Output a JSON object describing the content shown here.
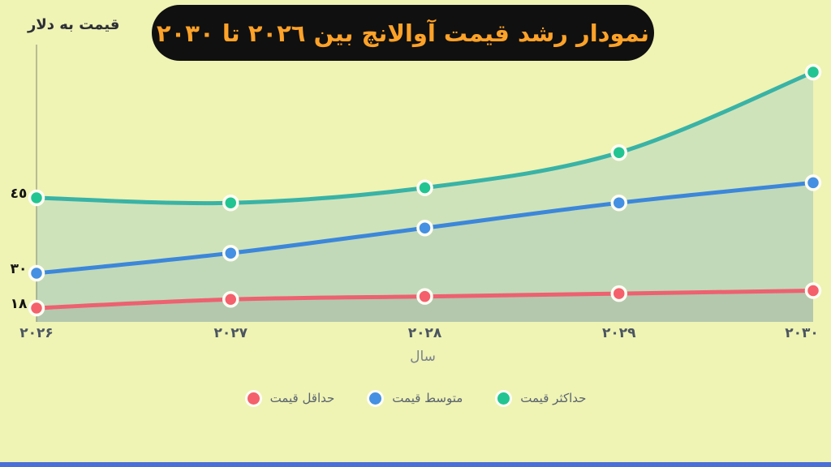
{
  "page": {
    "background": "#eff3b4",
    "bottom_bar_color": "#4a6fd8"
  },
  "title": {
    "text": "نمودار رشد قیمت آوالانچ بین ۲۰۲٦ تا ۲۰۳۰",
    "bg": "#101010",
    "color": "#ffa228"
  },
  "y_axis": {
    "label": "قیمت به دلار",
    "ticks": [
      {
        "label": "٤٥",
        "value": 45
      },
      {
        "label": "۳۰",
        "value": 30
      },
      {
        "label": "۱۸",
        "value": 18
      }
    ]
  },
  "x_axis": {
    "label": "سال",
    "ticks": [
      "۲۰۲۶",
      "۲۰۲۷",
      "۲۰۲۸",
      "۲۰۲۹",
      "۲۰۳۰"
    ]
  },
  "legend": {
    "items": [
      {
        "label": "حداقل قیمت",
        "color": "#f4606b"
      },
      {
        "label": "متوسط قیمت",
        "color": "#4590e2"
      },
      {
        "label": "حداکثر قیمت",
        "color": "#22c592"
      }
    ]
  },
  "chart_data": {
    "type": "area",
    "title": "نمودار رشد قیمت آوالانچ بین ۲۰۲٦ تا ۲۰۳۰",
    "x": [
      2026,
      2027,
      2028,
      2029,
      2030
    ],
    "x_display": [
      "۲۰۲۶",
      "۲۰۲۷",
      "۲۰۲۸",
      "۲۰۲۹",
      "۲۰۳۰"
    ],
    "xlabel": "سال",
    "ylabel": "قیمت به دلار",
    "y_ticks_labeled": [
      45,
      30,
      18
    ],
    "grid": false,
    "legend_position": "bottom",
    "series": [
      {
        "name": "حداقل قیمت",
        "role": "min",
        "line_color": "#ed6170",
        "dot_color": "#f4606b",
        "values": [
          18,
          21,
          22,
          23,
          24
        ]
      },
      {
        "name": "متوسط قیمت",
        "role": "avg",
        "line_color": "#3c87da",
        "dot_color": "#4590e2",
        "values": [
          30,
          34,
          39,
          44,
          48
        ]
      },
      {
        "name": "حداکثر قیمت",
        "role": "max",
        "line_color": "#39b3a6",
        "dot_color": "#22c592",
        "values": [
          45,
          44,
          47,
          54,
          70
        ]
      }
    ],
    "area_band_colors": {
      "max_to_avg": "#cfe3ba",
      "avg_to_min": "#c1d9b8",
      "below_min": "#b4c8ae"
    }
  }
}
